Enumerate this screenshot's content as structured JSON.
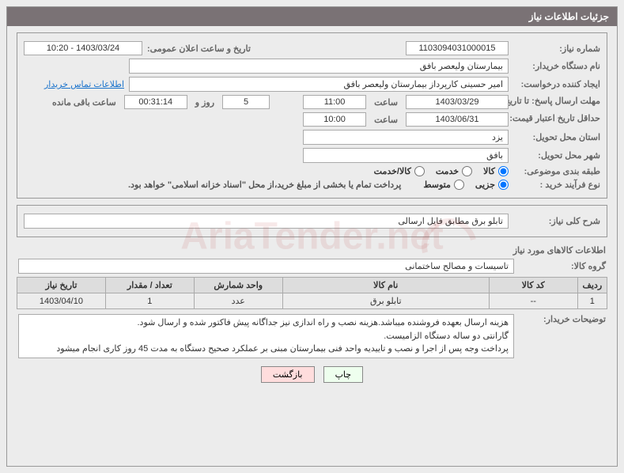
{
  "header": {
    "title": "جزئیات اطلاعات نیاز"
  },
  "fields": {
    "need_number_label": "شماره نیاز:",
    "need_number": "1103094031000015",
    "announcement_label": "تاریخ و ساعت اعلان عمومی:",
    "announcement_val": "1403/03/24 - 10:20",
    "buyer_org_label": "نام دستگاه خریدار:",
    "buyer_org": "بیمارستان ولیعصر بافق",
    "requester_label": "ایجاد کننده درخواست:",
    "requester": "امیر حسینی کارپرداز بیمارستان ولیعصر بافق",
    "contact_link": "اطلاعات تماس خریدار",
    "deadline_label": "مهلت ارسال پاسخ: تا تاریخ:",
    "deadline_date": "1403/03/29",
    "hour_label": "ساعت",
    "deadline_hour": "11:00",
    "days_remaining": "5",
    "days_word": "روز و",
    "hours_remaining": "00:31:14",
    "remain_label": "ساعت باقی مانده",
    "validity_label": "حداقل تاریخ اعتبار قیمت: تا تاریخ:",
    "validity_date": "1403/06/31",
    "validity_hour": "10:00",
    "province_label": "استان محل تحویل:",
    "province": "یزد",
    "city_label": "شهر محل تحویل:",
    "city": "بافق",
    "subject_class_label": "طبقه بندی موضوعی:",
    "purchase_type_label": "نوع فرآیند خرید :",
    "purchase_note": "پرداخت تمام یا بخشی از مبلغ خرید،از محل \"اسناد خزانه اسلامی\" خواهد بود.",
    "overview_label": "شرح کلی نیاز:",
    "overview_val": "تابلو برق مطابق فایل ارسالی",
    "goods_info_title": "اطلاعات کالاهای مورد نیاز",
    "group_label": "گروه کالا:",
    "group_val": "تاسیسات و مصالح ساختمانی",
    "buyer_notes_label": "توضیحات خریدار:",
    "buyer_notes": "هزینه ارسال بعهده فروشنده میباشد.هزینه نصب و راه اندازی نیز جداگانه پیش فاکتور شده و ارسال شود.\nگارانتی دو ساله دستگاه الزامیست.\nپرداخت وجه پس از اجرا و نصب و تاییدیه واحد فنی بیمارستان مبنی بر عملکرد صحیح دستگاه به مدت 45 روز کاری انجام میشود"
  },
  "radios": {
    "subject_options": [
      "کالا",
      "خدمت",
      "کالا/خدمت"
    ],
    "subject_selected_index": 0,
    "purchase_options": [
      "جزیی",
      "متوسط"
    ],
    "purchase_selected_index": 0
  },
  "table": {
    "columns": [
      "ردیف",
      "کد کالا",
      "نام کالا",
      "واحد شمارش",
      "تعداد / مقدار",
      "تاریخ نیاز"
    ],
    "col_widths": [
      "5%",
      "15%",
      "35%",
      "15%",
      "15%",
      "15%"
    ],
    "rows": [
      [
        "1",
        "--",
        "تابلو برق",
        "عدد",
        "1",
        "1403/04/10"
      ]
    ],
    "header_bg": "#dddddd",
    "border_color": "#aaaaaa"
  },
  "buttons": {
    "print": "چاپ",
    "back": "بازگشت"
  },
  "colors": {
    "title_bg": "#7a7275",
    "link": "#1a73cc",
    "btn_print_bg": "#e6f5e6",
    "btn_back_bg": "#fcdede"
  },
  "watermark_text": "AriaTender.net"
}
